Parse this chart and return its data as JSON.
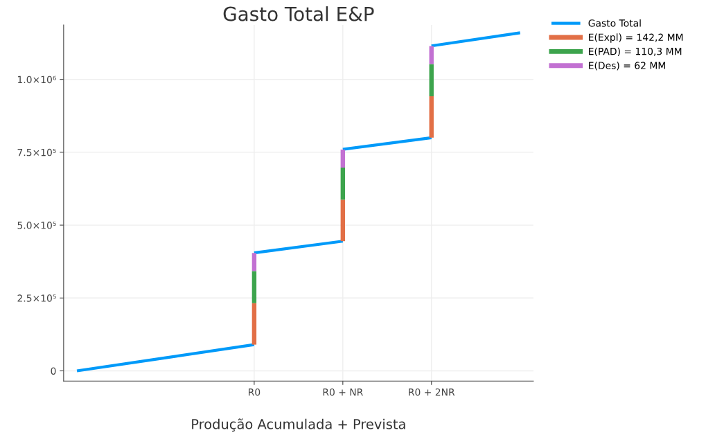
{
  "chart_data": {
    "type": "line",
    "title": "Gasto Total E&P",
    "xlabel": "Produção Acumulada + Prevista",
    "categories": [
      null,
      null,
      "R0",
      "R0 + NR",
      "R0 + 2NR",
      null
    ],
    "ylim": [
      -35000,
      1187000
    ],
    "yticks": [
      {
        "value": 0,
        "label": "0"
      },
      {
        "value": 250000,
        "label": "2.5×10⁵"
      },
      {
        "value": 500000,
        "label": "5.0×10⁵"
      },
      {
        "value": 750000,
        "label": "7.5×10⁵"
      },
      {
        "value": 1000000,
        "label": "1.0×10⁶"
      }
    ],
    "grid": true,
    "legend": "top right",
    "line_style": "solid",
    "marker": "none",
    "series": [
      {
        "name": "Gasto Total",
        "color": "#009af9",
        "values": [
          0,
          45000,
          90000,
          null,
          null,
          null
        ]
      },
      {
        "color": "#009af9",
        "values": [
          null,
          null,
          405000,
          445000,
          null,
          null
        ]
      },
      {
        "color": "#009af9",
        "values": [
          null,
          null,
          null,
          760000,
          800000,
          null
        ]
      },
      {
        "color": "#009af9",
        "values": [
          null,
          null,
          null,
          null,
          1115000,
          1160000
        ]
      },
      {
        "name": "E(Expl) = 142,2 MM",
        "type": "bar",
        "color": "#e26f46",
        "base": [
          null,
          null,
          90000,
          445000,
          800000,
          null
        ],
        "values": [
          null,
          null,
          142200,
          142200,
          142200,
          null
        ]
      },
      {
        "name": "E(PAD) = 110,3 MM",
        "type": "bar",
        "color": "#3da44d",
        "base": [
          null,
          null,
          232200,
          587200,
          942200,
          null
        ],
        "values": [
          null,
          null,
          110300,
          110300,
          110300,
          null
        ]
      },
      {
        "name": "E(Des) = 62 MM",
        "type": "bar",
        "color": "#c271d2",
        "base": [
          null,
          null,
          342500,
          697500,
          1052500,
          null
        ],
        "values": [
          null,
          null,
          62000,
          62000,
          62000,
          null
        ]
      }
    ]
  }
}
